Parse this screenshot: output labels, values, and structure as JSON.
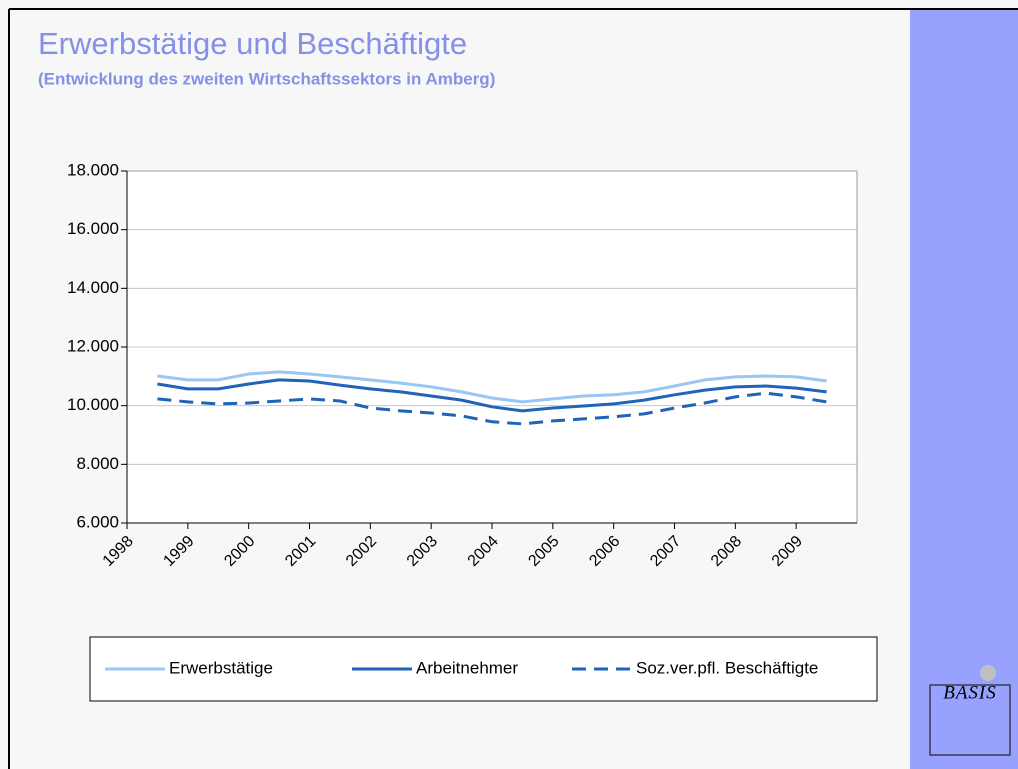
{
  "chart_data": {
    "type": "line",
    "title": "Erwerbstätige und Beschäftigte",
    "subtitle": "(Entwicklung des zweiten Wirtschaftssektors in Amberg)",
    "logo": "BASIS",
    "x": [
      1998.5,
      1999,
      1999.5,
      2000,
      2000.5,
      2001,
      2001.5,
      2002,
      2002.5,
      2003,
      2003.5,
      2004,
      2004.5,
      2005,
      2005.5,
      2006,
      2006.5,
      2007,
      2007.5,
      2008,
      2008.5,
      2009,
      2009.5
    ],
    "xlim": [
      1998,
      2010
    ],
    "xticks": [
      1998,
      1999,
      2000,
      2001,
      2002,
      2003,
      2004,
      2005,
      2006,
      2007,
      2008,
      2009
    ],
    "ylim": [
      6000,
      18000
    ],
    "yticks": [
      {
        "value": 6000,
        "label": "6.000"
      },
      {
        "value": 8000,
        "label": "8.000"
      },
      {
        "value": 10000,
        "label": "10.000"
      },
      {
        "value": 12000,
        "label": "12.000"
      },
      {
        "value": 14000,
        "label": "14.000"
      },
      {
        "value": 16000,
        "label": "16.000"
      },
      {
        "value": 18000,
        "label": "18.000"
      }
    ],
    "grid": true,
    "legend": "bottom",
    "series": [
      {
        "name": "Erwerbstätige",
        "color": "#99c6f2",
        "dash": false,
        "values": [
          11010,
          10880,
          10880,
          11080,
          11150,
          11080,
          10980,
          10880,
          10770,
          10640,
          10470,
          10260,
          10130,
          10230,
          10330,
          10370,
          10470,
          10670,
          10880,
          10980,
          11010,
          10980,
          10840
        ]
      },
      {
        "name": "Arbeitnehmer",
        "color": "#1f64b8",
        "dash": false,
        "values": [
          10740,
          10570,
          10570,
          10740,
          10880,
          10840,
          10700,
          10570,
          10470,
          10330,
          10190,
          9960,
          9820,
          9920,
          9990,
          10060,
          10190,
          10370,
          10530,
          10640,
          10670,
          10600,
          10470
        ]
      },
      {
        "name": "Soz.ver.pfl. Beschäftigte",
        "color": "#1f64b8",
        "dash": true,
        "values": [
          10230,
          10130,
          10060,
          10090,
          10160,
          10230,
          10160,
          9920,
          9820,
          9750,
          9650,
          9450,
          9380,
          9480,
          9550,
          9620,
          9720,
          9920,
          10090,
          10300,
          10430,
          10300,
          10130
        ]
      }
    ]
  }
}
